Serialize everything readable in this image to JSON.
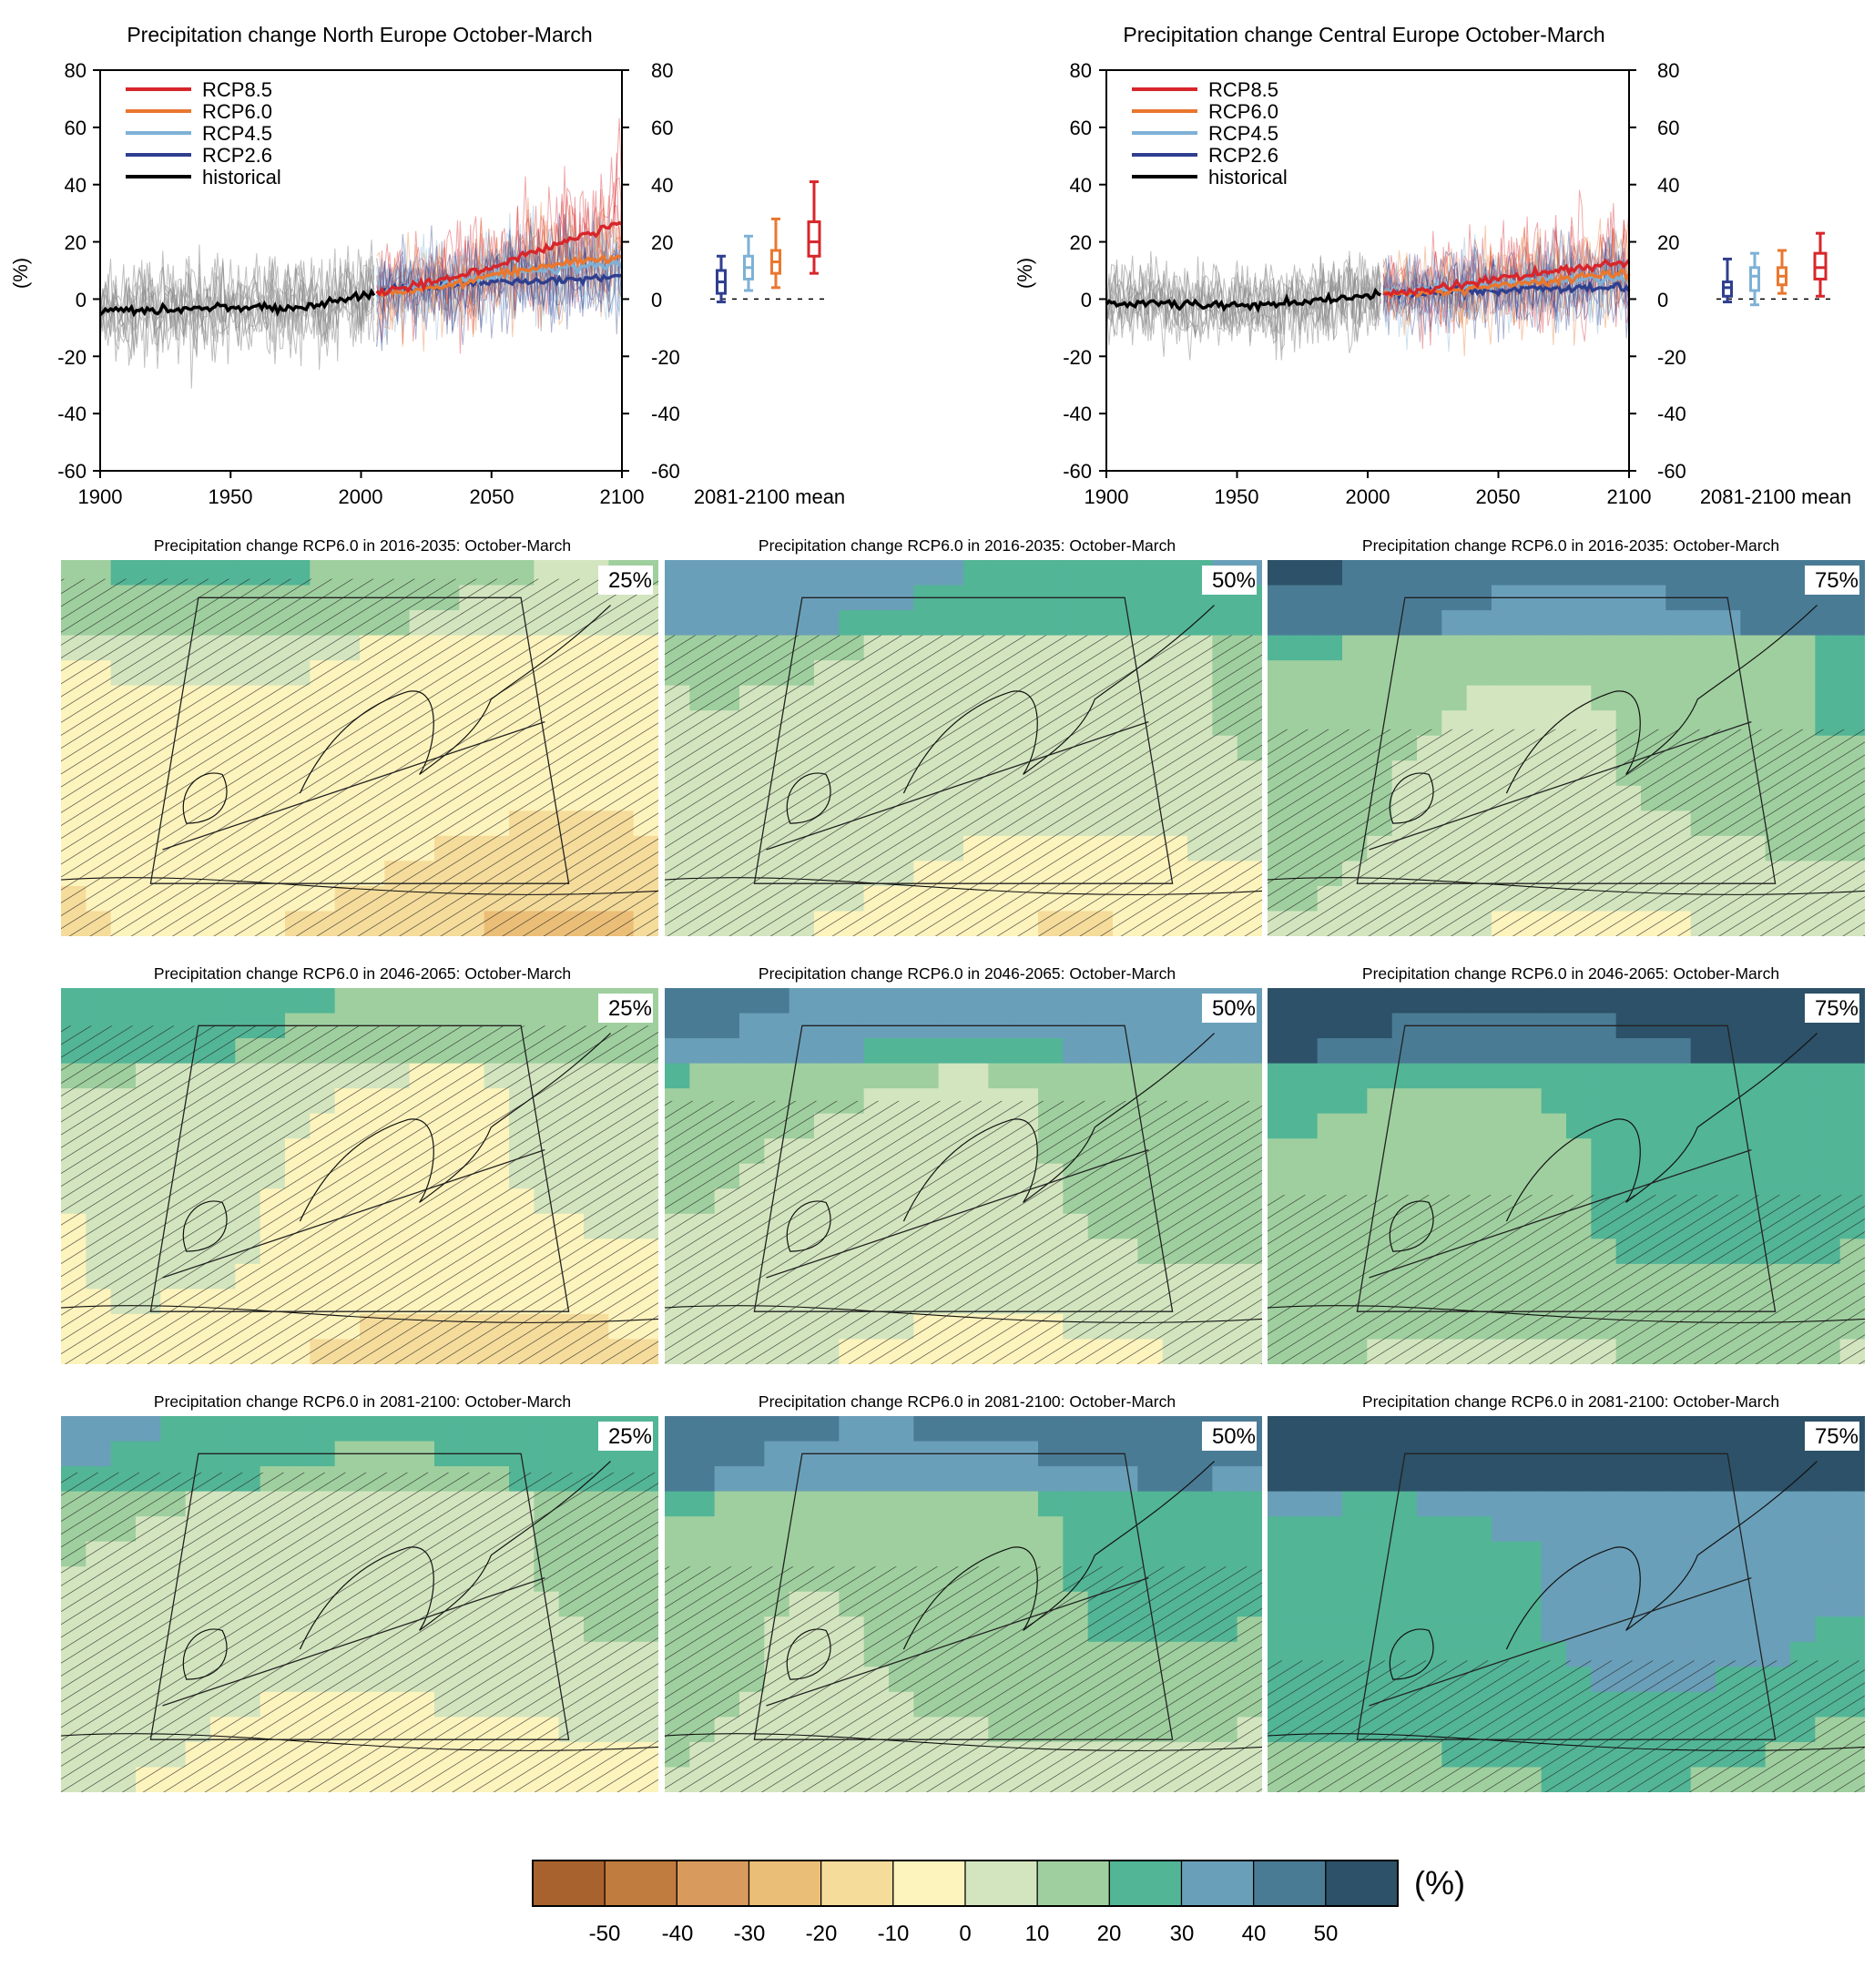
{
  "colors": {
    "rcp85": "#d7262b",
    "rcp60": "#e9772f",
    "rcp45": "#7eb1d6",
    "rcp26": "#2f3f8f",
    "historical": "#000000",
    "historical_spread": "#8a8a8a",
    "zero_line": "#000000"
  },
  "chart_data": [
    {
      "type": "line",
      "title": "Precipitation change North Europe October-March",
      "ylabel": "(%)",
      "xlim": [
        1900,
        2100
      ],
      "ylim": [
        -60,
        80
      ],
      "x_ticks": [
        "1900",
        "1950",
        "2000",
        "2050",
        "2100"
      ],
      "y_ticks": [
        "80",
        "60",
        "40",
        "20",
        "0",
        "-20",
        "-40",
        "-60"
      ],
      "right_axis_ticks": [
        "80",
        "60",
        "40",
        "20",
        "0",
        "-20",
        "-40",
        "-60"
      ],
      "legend_position": "top-left",
      "series": [
        {
          "name": "RCP8.5",
          "key": "rcp85",
          "x": [
            2006,
            2020,
            2035,
            2050,
            2065,
            2080,
            2100
          ],
          "values": [
            2,
            5,
            8,
            11,
            16,
            21,
            27
          ]
        },
        {
          "name": "RCP6.0",
          "key": "rcp60",
          "x": [
            2006,
            2020,
            2035,
            2050,
            2065,
            2080,
            2100
          ],
          "values": [
            2,
            3,
            5,
            8,
            11,
            13,
            15
          ]
        },
        {
          "name": "RCP4.5",
          "key": "rcp45",
          "x": [
            2006,
            2020,
            2035,
            2050,
            2065,
            2080,
            2100
          ],
          "values": [
            2,
            4,
            6,
            8,
            10,
            11,
            12
          ]
        },
        {
          "name": "RCP2.6",
          "key": "rcp26",
          "x": [
            2006,
            2020,
            2035,
            2050,
            2065,
            2080,
            2100
          ],
          "values": [
            2,
            4,
            5,
            6,
            6,
            7,
            8
          ]
        },
        {
          "name": "historical",
          "key": "historical",
          "x": [
            1900,
            1920,
            1940,
            1960,
            1975,
            1990,
            2005
          ],
          "values": [
            -4,
            -4,
            -3,
            -3,
            -3,
            -1,
            2
          ]
        }
      ],
      "box_panel": {
        "label": "2081-2100 mean",
        "boxes": [
          {
            "key": "rcp26",
            "min": -1,
            "q1": 2,
            "median": 6,
            "q3": 10,
            "max": 15
          },
          {
            "key": "rcp45",
            "min": 3,
            "q1": 7,
            "median": 11,
            "q3": 15,
            "max": 22
          },
          {
            "key": "rcp60",
            "min": 4,
            "q1": 9,
            "median": 13,
            "q3": 17,
            "max": 28
          },
          {
            "key": "rcp85",
            "min": 9,
            "q1": 15,
            "median": 20,
            "q3": 27,
            "max": 41
          }
        ]
      }
    },
    {
      "type": "line",
      "title": "Precipitation change Central Europe October-March",
      "ylabel": "(%)",
      "xlim": [
        1900,
        2100
      ],
      "ylim": [
        -60,
        80
      ],
      "x_ticks": [
        "1900",
        "1950",
        "2000",
        "2050",
        "2100"
      ],
      "y_ticks": [
        "80",
        "60",
        "40",
        "20",
        "0",
        "-20",
        "-40",
        "-60"
      ],
      "right_axis_ticks": [
        "80",
        "60",
        "40",
        "20",
        "0",
        "-20",
        "-40",
        "-60"
      ],
      "legend_position": "top-left",
      "series": [
        {
          "name": "RCP8.5",
          "key": "rcp85",
          "x": [
            2006,
            2020,
            2035,
            2050,
            2065,
            2080,
            2100
          ],
          "values": [
            2,
            3,
            5,
            7,
            9,
            11,
            13
          ]
        },
        {
          "name": "RCP6.0",
          "key": "rcp60",
          "x": [
            2006,
            2020,
            2035,
            2050,
            2065,
            2080,
            2100
          ],
          "values": [
            2,
            2,
            3,
            5,
            6,
            8,
            9
          ]
        },
        {
          "name": "RCP4.5",
          "key": "rcp45",
          "x": [
            2006,
            2020,
            2035,
            2050,
            2065,
            2080,
            2100
          ],
          "values": [
            2,
            3,
            4,
            5,
            6,
            7,
            7
          ]
        },
        {
          "name": "RCP2.6",
          "key": "rcp26",
          "x": [
            2006,
            2020,
            2035,
            2050,
            2065,
            2080,
            2100
          ],
          "values": [
            2,
            2,
            3,
            3,
            4,
            4,
            4
          ]
        },
        {
          "name": "historical",
          "key": "historical",
          "x": [
            1900,
            1920,
            1940,
            1960,
            1975,
            1990,
            2005
          ],
          "values": [
            -2,
            -1,
            -2,
            -2,
            -1,
            0,
            2
          ]
        }
      ],
      "box_panel": {
        "label": "2081-2100 mean",
        "boxes": [
          {
            "key": "rcp26",
            "min": -1,
            "q1": 1,
            "median": 4,
            "q3": 6,
            "max": 14
          },
          {
            "key": "rcp45",
            "min": -2,
            "q1": 3,
            "median": 8,
            "q3": 11,
            "max": 16
          },
          {
            "key": "rcp60",
            "min": 2,
            "q1": 5,
            "median": 8,
            "q3": 11,
            "max": 17
          },
          {
            "key": "rcp85",
            "min": 1,
            "q1": 7,
            "median": 11,
            "q3": 16,
            "max": 23
          }
        ]
      }
    },
    {
      "type": "heatmap",
      "map_rows": [
        {
          "title": "Precipitation change RCP6.0 in 2016-2035: October-March",
          "panels": [
            {
              "percentile": "25%",
              "level": -5
            },
            {
              "percentile": "50%",
              "level": 5
            },
            {
              "percentile": "75%",
              "level": 12
            }
          ]
        },
        {
          "title": "Precipitation change RCP6.0 in 2046-2065: October-March",
          "panels": [
            {
              "percentile": "25%",
              "level": 0
            },
            {
              "percentile": "50%",
              "level": 10
            },
            {
              "percentile": "75%",
              "level": 20
            }
          ]
        },
        {
          "title": "Precipitation change RCP6.0 in 2081-2100: October-March",
          "panels": [
            {
              "percentile": "25%",
              "level": 5
            },
            {
              "percentile": "50%",
              "level": 15
            },
            {
              "percentile": "75%",
              "level": 28
            }
          ]
        }
      ],
      "colorbar": {
        "unit": "(%)",
        "tick_labels": [
          "-50",
          "-40",
          "-30",
          "-20",
          "-10",
          "0",
          "10",
          "20",
          "30",
          "40",
          "50"
        ],
        "colors": [
          "#a8622d",
          "#c07c3e",
          "#d99a5e",
          "#ebbe77",
          "#f5dc9b",
          "#fdf3bd",
          "#d3e5bf",
          "#9fcf9f",
          "#52b596",
          "#6a9fb9",
          "#4a7b95",
          "#2c5168"
        ]
      }
    }
  ]
}
